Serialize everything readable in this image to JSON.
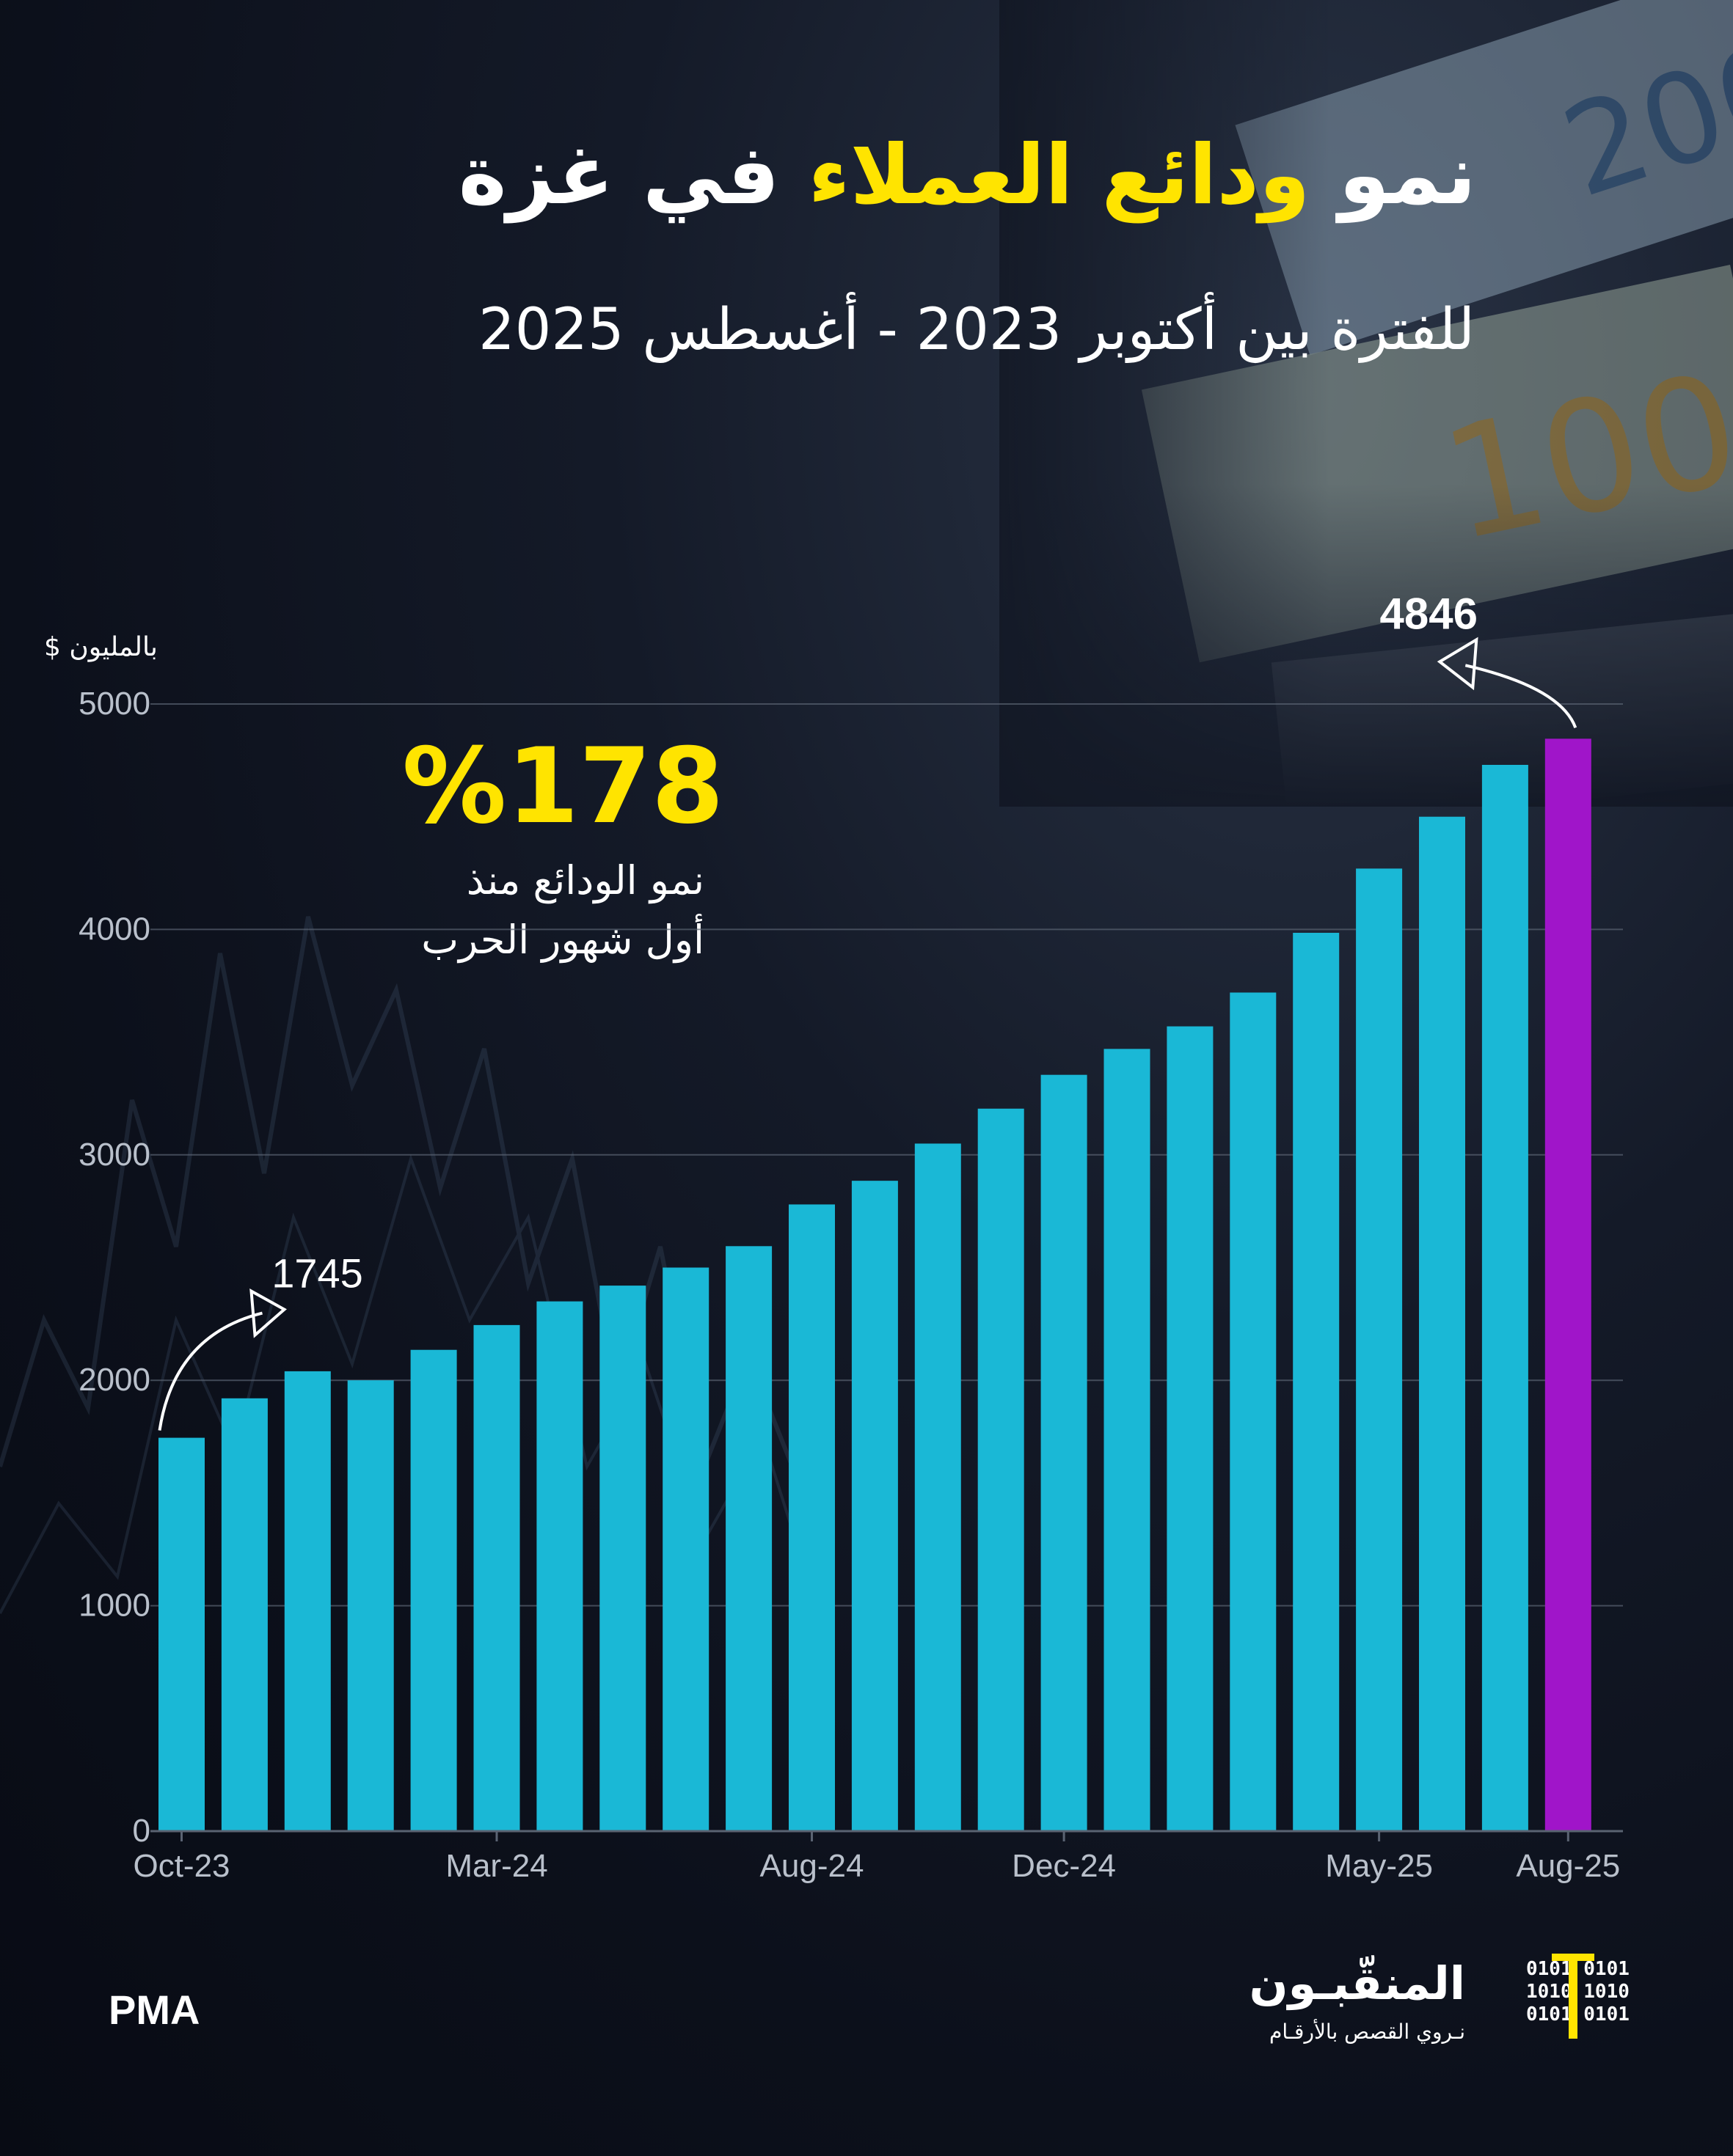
{
  "header": {
    "title_part1": "نمو ",
    "title_highlight": "ودائع العملاء",
    "title_part2": " في غزة",
    "subtitle": "للفترة بين أكتوبر 2023 - أغسطس 2025"
  },
  "colors": {
    "bar": "#1ab8d6",
    "bar_last": "#a015c9",
    "highlight": "#ffe400",
    "grid": "#5a6372",
    "text": "#ffffff",
    "tick": "#b9c0cb"
  },
  "callout": {
    "value": "%178",
    "note_line1": "نمو الودائع منذ",
    "note_line2": "أول شهور الحرب"
  },
  "source": "PMA",
  "logo": {
    "name": "المنقّبـون",
    "tagline": "نـروي القصص بالأرقـام",
    "binary": "0101 0101\n1010 1010\n0101 0101"
  },
  "chart_data": {
    "type": "bar",
    "ylabel": "بالمليون $",
    "ylim": [
      0,
      5000
    ],
    "yticks": [
      "0",
      "1000",
      "2000",
      "3000",
      "4000",
      "5000"
    ],
    "x_tick_labels": [
      {
        "index": 0,
        "label": "Oct-23"
      },
      {
        "index": 5,
        "label": "Mar-24"
      },
      {
        "index": 10,
        "label": "Aug-24"
      },
      {
        "index": 14,
        "label": "Dec-24"
      },
      {
        "index": 19,
        "label": "May-25"
      },
      {
        "index": 22,
        "label": "Aug-25"
      }
    ],
    "categories": [
      "Oct-23",
      "Nov-23",
      "Dec-23",
      "Jan-24",
      "Feb-24",
      "Mar-24",
      "Apr-24",
      "May-24",
      "Jun-24",
      "Jul-24",
      "Aug-24",
      "Sep-24",
      "Oct-24",
      "Nov-24",
      "Dec-24",
      "Jan-25",
      "Feb-25",
      "Mar-25",
      "Apr-25",
      "May-25",
      "Jun-25",
      "Jul-25",
      "Aug-25"
    ],
    "values": [
      1745,
      1920,
      2040,
      2000,
      2135,
      2245,
      2350,
      2420,
      2500,
      2595,
      2780,
      2885,
      3050,
      3205,
      3355,
      3470,
      3570,
      3720,
      3985,
      4270,
      4500,
      4730,
      4846
    ],
    "annotations": [
      {
        "index": 0,
        "label": "1745"
      },
      {
        "index": 22,
        "label": "4846"
      }
    ],
    "grid": true,
    "highlight_index": 22
  }
}
